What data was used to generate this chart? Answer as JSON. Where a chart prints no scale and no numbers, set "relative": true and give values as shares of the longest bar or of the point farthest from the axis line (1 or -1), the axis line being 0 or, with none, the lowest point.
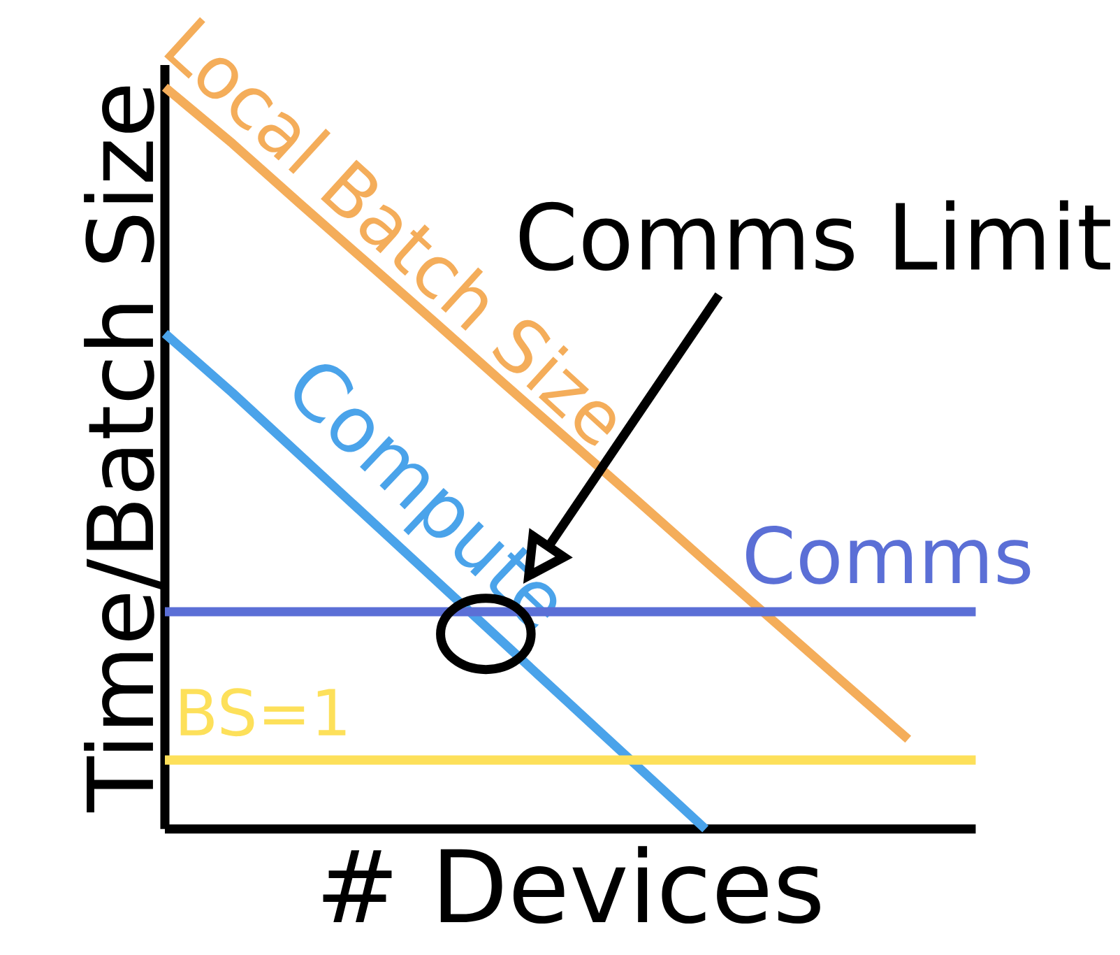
{
  "chart_data": {
    "type": "line",
    "relative": true,
    "xlabel": "# Devices",
    "ylabel": "Time/Batch Size",
    "marker": "none",
    "line_style": "solid",
    "categories": [
      null,
      null,
      null,
      null,
      null,
      null,
      null,
      null,
      null,
      null,
      null,
      null,
      null
    ],
    "series": [
      {
        "name": "Local Batch Size",
        "color": "#f4ad5a",
        "values": [
          1.0,
          0.924,
          0.843,
          0.763,
          0.683,
          0.602,
          0.522,
          0.442,
          0.361,
          0.281,
          0.201,
          0.121,
          null
        ]
      },
      {
        "name": "Compute",
        "color": "#4aa3ea",
        "values": [
          0.668,
          0.588,
          0.504,
          0.42,
          0.336,
          0.252,
          0.168,
          0.084,
          0.0,
          null,
          null,
          null,
          null
        ]
      },
      {
        "name": "Comms",
        "color": "#5b6fd6",
        "values": [
          0.293,
          0.293,
          0.293,
          0.293,
          0.293,
          0.293,
          0.293,
          0.293,
          0.293,
          0.293,
          0.293,
          0.293,
          0.293
        ]
      },
      {
        "name": "BS=1",
        "color": "#fde05a",
        "values": [
          0.093,
          0.093,
          0.093,
          0.093,
          0.093,
          0.093,
          0.093,
          0.093,
          0.093,
          0.093,
          0.093,
          0.093,
          0.093
        ]
      }
    ],
    "annotations": [
      "Comms Limit"
    ]
  }
}
